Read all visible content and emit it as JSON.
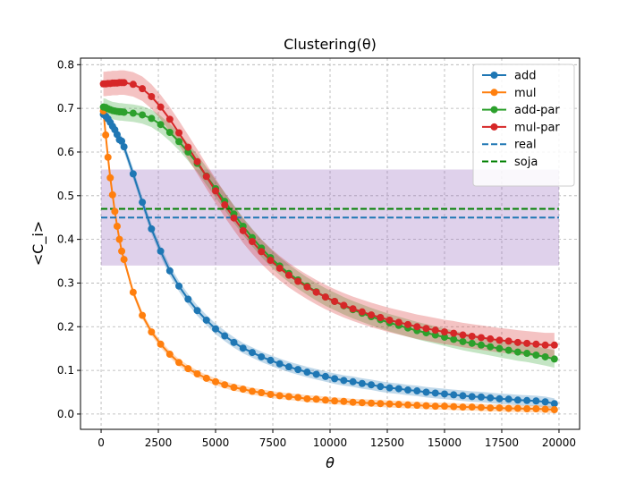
{
  "chart_data": {
    "type": "line",
    "title": "Clustering(θ)",
    "xlabel": "θ",
    "ylabel": "<C_i>",
    "xlim": [
      -900,
      20900
    ],
    "ylim": [
      -0.035,
      0.815
    ],
    "x_ticks": [
      0,
      2500,
      5000,
      7500,
      10000,
      12500,
      15000,
      17500,
      20000
    ],
    "x_tick_labels": [
      "0",
      "2500",
      "5000",
      "7500",
      "10000",
      "12500",
      "15000",
      "17500",
      "20000"
    ],
    "y_ticks": [
      0.0,
      0.1,
      0.2,
      0.3,
      0.4,
      0.5,
      0.6,
      0.7,
      0.8
    ],
    "y_tick_labels": [
      "0.0",
      "0.1",
      "0.2",
      "0.3",
      "0.4",
      "0.5",
      "0.6",
      "0.7",
      "0.8"
    ],
    "grid": true,
    "legend_position": "top-right",
    "band": {
      "x": [
        0,
        20000
      ],
      "y": [
        0.34,
        0.56
      ],
      "color": "#9467bd"
    },
    "series": [
      {
        "name": "add",
        "color": "#1f77b4",
        "marker": true,
        "x": [
          100,
          200,
          300,
          400,
          500,
          600,
          700,
          800,
          900,
          1000,
          1400,
          1800,
          2200,
          2600,
          3000,
          3400,
          3800,
          4200,
          4600,
          5000,
          5400,
          5800,
          6200,
          6600,
          7000,
          7400,
          7800,
          8200,
          8600,
          9000,
          9400,
          9800,
          10200,
          10600,
          11000,
          11400,
          11800,
          12200,
          12600,
          13000,
          13400,
          13800,
          14200,
          14600,
          15000,
          15400,
          15800,
          16200,
          16600,
          17000,
          17400,
          17800,
          18200,
          18600,
          19000,
          19400,
          19800
        ],
        "values": [
          0.686,
          0.682,
          0.676,
          0.668,
          0.659,
          0.651,
          0.64,
          0.628,
          0.625,
          0.612,
          0.55,
          0.485,
          0.424,
          0.373,
          0.328,
          0.293,
          0.263,
          0.237,
          0.215,
          0.195,
          0.179,
          0.164,
          0.151,
          0.141,
          0.131,
          0.123,
          0.115,
          0.108,
          0.102,
          0.096,
          0.091,
          0.086,
          0.081,
          0.077,
          0.074,
          0.07,
          0.067,
          0.063,
          0.06,
          0.058,
          0.055,
          0.053,
          0.05,
          0.048,
          0.046,
          0.044,
          0.042,
          0.04,
          0.039,
          0.037,
          0.035,
          0.034,
          0.032,
          0.031,
          0.03,
          0.028,
          0.024
        ],
        "band_halfwidth": 0.012
      },
      {
        "name": "mul",
        "color": "#ff7f0e",
        "marker": true,
        "x": [
          100,
          200,
          300,
          400,
          500,
          600,
          700,
          800,
          900,
          1000,
          1400,
          1800,
          2200,
          2600,
          3000,
          3400,
          3800,
          4200,
          4600,
          5000,
          5400,
          5800,
          6200,
          6600,
          7000,
          7400,
          7800,
          8200,
          8600,
          9000,
          9400,
          9800,
          10200,
          10600,
          11000,
          11400,
          11800,
          12200,
          12600,
          13000,
          13400,
          13800,
          14200,
          14600,
          15000,
          15400,
          15800,
          16200,
          16600,
          17000,
          17400,
          17800,
          18200,
          18600,
          19000,
          19400,
          19800
        ],
        "values": [
          0.694,
          0.639,
          0.588,
          0.541,
          0.502,
          0.464,
          0.43,
          0.4,
          0.373,
          0.354,
          0.279,
          0.226,
          0.188,
          0.16,
          0.137,
          0.118,
          0.104,
          0.092,
          0.082,
          0.074,
          0.067,
          0.061,
          0.057,
          0.052,
          0.049,
          0.045,
          0.042,
          0.04,
          0.038,
          0.035,
          0.034,
          0.032,
          0.03,
          0.029,
          0.027,
          0.026,
          0.025,
          0.024,
          0.023,
          0.022,
          0.021,
          0.02,
          0.019,
          0.018,
          0.018,
          0.017,
          0.016,
          0.016,
          0.015,
          0.014,
          0.014,
          0.013,
          0.013,
          0.012,
          0.012,
          0.011,
          0.01
        ],
        "band_halfwidth": 0.008
      },
      {
        "name": "add-par",
        "color": "#2ca02c",
        "marker": true,
        "x": [
          100,
          200,
          300,
          400,
          500,
          600,
          700,
          800,
          900,
          1000,
          1400,
          1800,
          2200,
          2600,
          3000,
          3400,
          3800,
          4200,
          4600,
          5000,
          5400,
          5800,
          6200,
          6600,
          7000,
          7400,
          7800,
          8200,
          8600,
          9000,
          9400,
          9800,
          10200,
          10600,
          11000,
          11400,
          11800,
          12200,
          12600,
          13000,
          13400,
          13800,
          14200,
          14600,
          15000,
          15400,
          15800,
          16200,
          16600,
          17000,
          17400,
          17800,
          18200,
          18600,
          19000,
          19400,
          19800
        ],
        "values": [
          0.703,
          0.702,
          0.699,
          0.697,
          0.695,
          0.694,
          0.693,
          0.692,
          0.692,
          0.691,
          0.689,
          0.685,
          0.677,
          0.663,
          0.645,
          0.624,
          0.6,
          0.574,
          0.545,
          0.516,
          0.487,
          0.458,
          0.43,
          0.404,
          0.38,
          0.358,
          0.339,
          0.322,
          0.307,
          0.293,
          0.28,
          0.268,
          0.258,
          0.248,
          0.239,
          0.231,
          0.223,
          0.216,
          0.209,
          0.203,
          0.197,
          0.191,
          0.186,
          0.181,
          0.176,
          0.171,
          0.166,
          0.162,
          0.158,
          0.154,
          0.15,
          0.146,
          0.142,
          0.139,
          0.135,
          0.131,
          0.126
        ],
        "band_halfwidth": 0.02
      },
      {
        "name": "mul-par",
        "color": "#d62728",
        "marker": true,
        "x": [
          100,
          200,
          300,
          400,
          500,
          600,
          700,
          800,
          900,
          1000,
          1400,
          1800,
          2200,
          2600,
          3000,
          3400,
          3800,
          4200,
          4600,
          5000,
          5400,
          5800,
          6200,
          6600,
          7000,
          7400,
          7800,
          8200,
          8600,
          9000,
          9400,
          9800,
          10200,
          10600,
          11000,
          11400,
          11800,
          12200,
          12600,
          13000,
          13400,
          13800,
          14200,
          14600,
          15000,
          15400,
          15800,
          16200,
          16600,
          17000,
          17400,
          17800,
          18200,
          18600,
          19000,
          19400,
          19800
        ],
        "values": [
          0.756,
          0.756,
          0.757,
          0.757,
          0.758,
          0.758,
          0.758,
          0.759,
          0.759,
          0.759,
          0.755,
          0.745,
          0.727,
          0.703,
          0.675,
          0.644,
          0.611,
          0.578,
          0.544,
          0.511,
          0.479,
          0.449,
          0.42,
          0.395,
          0.372,
          0.352,
          0.334,
          0.318,
          0.304,
          0.291,
          0.279,
          0.268,
          0.258,
          0.249,
          0.241,
          0.234,
          0.227,
          0.221,
          0.215,
          0.21,
          0.205,
          0.2,
          0.196,
          0.192,
          0.188,
          0.185,
          0.181,
          0.178,
          0.175,
          0.172,
          0.169,
          0.167,
          0.164,
          0.162,
          0.16,
          0.158,
          0.158
        ],
        "band_halfwidth": 0.028
      },
      {
        "name": "real",
        "color": "#1f77b4",
        "dashed": true,
        "x": [
          0,
          20000
        ],
        "values": [
          0.45,
          0.45
        ]
      },
      {
        "name": "soja",
        "color": "#008000",
        "dashed": true,
        "x": [
          0,
          20000
        ],
        "values": [
          0.47,
          0.47
        ]
      }
    ]
  }
}
